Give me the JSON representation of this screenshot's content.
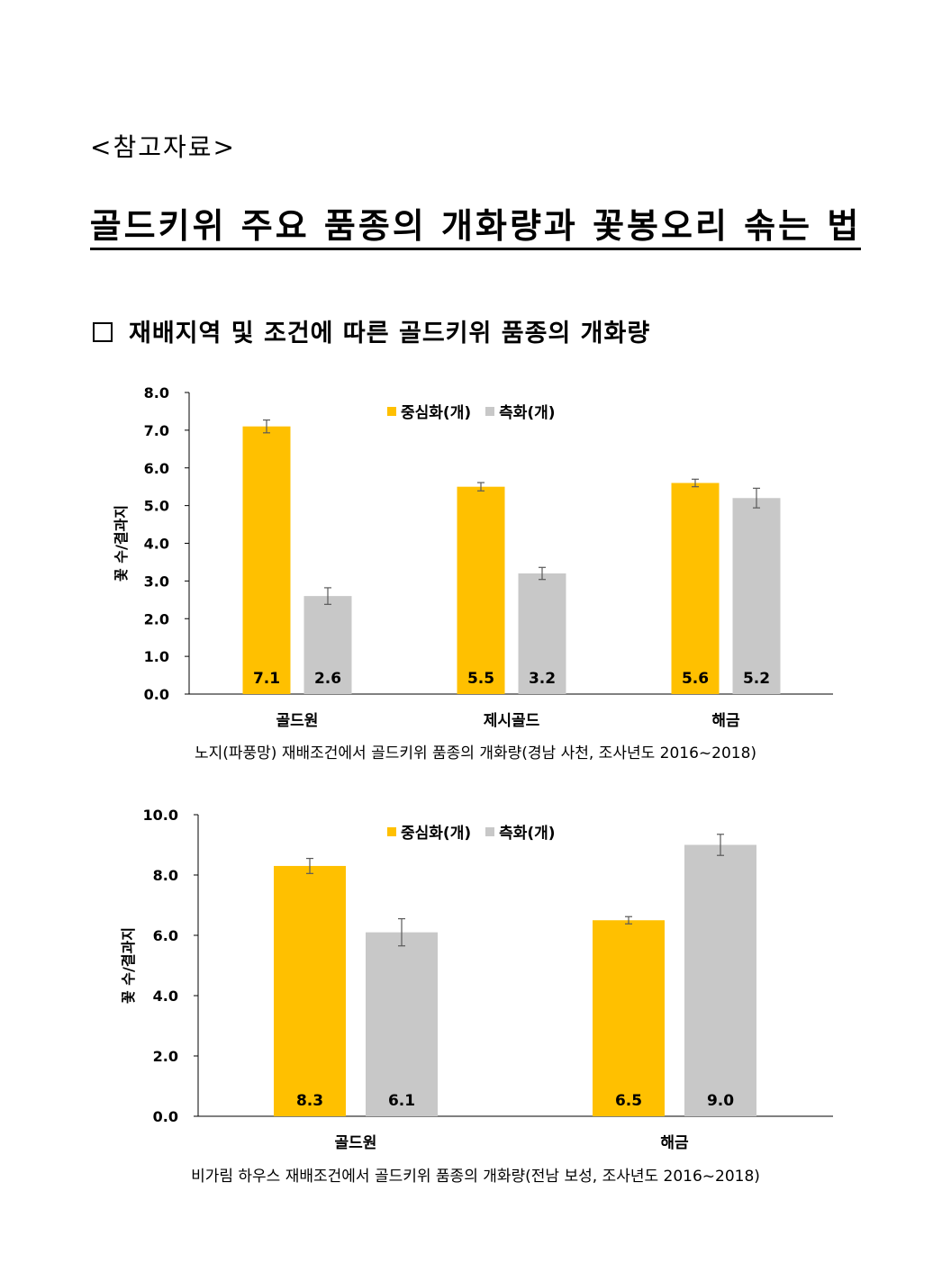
{
  "header": {
    "ref_label": "<참고자료>",
    "title": "골드키위 주요 품종의 개화량과 꽃봉오리 솎는 법"
  },
  "section": {
    "heading": "재배지역 및 조건에 따른 골드키위 품종의 개화량"
  },
  "colors": {
    "center_flower": "#FFC000",
    "side_flower": "#C8C8C8",
    "error_bar": "#595959"
  },
  "chart_data": [
    {
      "type": "bar",
      "categories": [
        "골드원",
        "제시골드",
        "해금"
      ],
      "series": [
        {
          "name": "중심화(개)",
          "values": [
            7.1,
            5.5,
            5.6
          ],
          "labels": [
            "7.1",
            "5.5",
            "5.6"
          ],
          "errors": [
            0.17,
            0.11,
            0.1
          ]
        },
        {
          "name": "측화(개)",
          "values": [
            2.6,
            3.2,
            5.2
          ],
          "labels": [
            "2.6",
            "3.2",
            "5.2"
          ],
          "errors": [
            0.22,
            0.16,
            0.26
          ]
        }
      ],
      "ylabel": "꽃 수/결과지",
      "ylim": [
        0,
        8
      ],
      "yticks": [
        "0.0",
        "1.0",
        "2.0",
        "3.0",
        "4.0",
        "5.0",
        "6.0",
        "7.0",
        "8.0"
      ],
      "legend": "top-center",
      "caption": "노지(파풍망) 재배조건에서 골드키위 품종의 개화량(경남 사천, 조사년도 2016~2018)"
    },
    {
      "type": "bar",
      "categories": [
        "골드원",
        "해금"
      ],
      "series": [
        {
          "name": "중심화(개)",
          "values": [
            8.3,
            6.5
          ],
          "labels": [
            "8.3",
            "6.5"
          ],
          "errors": [
            0.25,
            0.12
          ]
        },
        {
          "name": "측화(개)",
          "values": [
            6.1,
            9.0
          ],
          "labels": [
            "6.1",
            "9.0"
          ],
          "errors": [
            0.45,
            0.35
          ]
        }
      ],
      "ylabel": "꽃 수/결과지",
      "ylim": [
        0,
        10
      ],
      "yticks": [
        "0.0",
        "2.0",
        "4.0",
        "6.0",
        "8.0",
        "10.0"
      ],
      "legend": "top-center",
      "caption": "비가림 하우스 재배조건에서 골드키위 품종의 개화량(전남 보성, 조사년도 2016~2018)"
    }
  ]
}
